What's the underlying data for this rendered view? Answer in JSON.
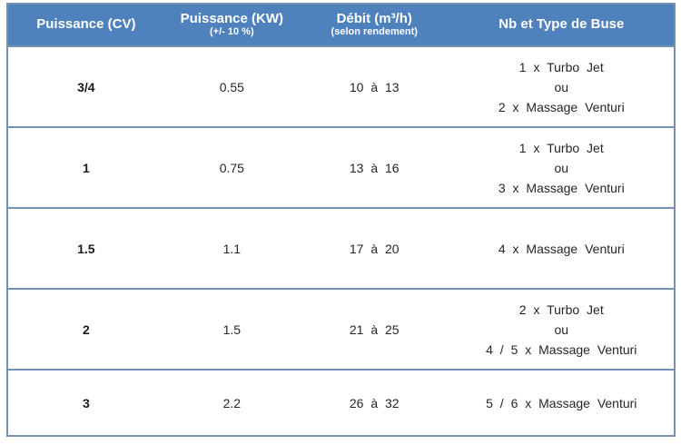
{
  "colors": {
    "header_bg": "#4f81bd",
    "header_text": "#ffffff",
    "border": "#7293b5",
    "body_text": "#262626"
  },
  "table": {
    "header": [
      {
        "title": "Puissance (CV)",
        "subtitle": ""
      },
      {
        "title": "Puissance (KW)",
        "subtitle": "(+/- 10 %)"
      },
      {
        "title": "Débit (m³/h)",
        "subtitle": "(selon rendement)"
      },
      {
        "title": "Nb et Type de Buse",
        "subtitle": ""
      }
    ],
    "rows": [
      {
        "puissance_cv": "3/4",
        "puissance_kw": "0.55",
        "debit": "10 à 13",
        "buses": [
          "1 x Turbo Jet",
          "ou",
          "2 x Massage Venturi"
        ]
      },
      {
        "puissance_cv": "1",
        "puissance_kw": "0.75",
        "debit": "13 à 16",
        "buses": [
          "1 x Turbo Jet",
          "ou",
          "3 x Massage Venturi"
        ]
      },
      {
        "puissance_cv": "1.5",
        "puissance_kw": "1.1",
        "debit": "17 à 20",
        "buses": [
          "4 x Massage Venturi"
        ]
      },
      {
        "puissance_cv": "2",
        "puissance_kw": "1.5",
        "debit": "21 à 25",
        "buses": [
          "2 x Turbo Jet",
          "ou",
          "4 / 5 x Massage Venturi"
        ]
      },
      {
        "puissance_cv": "3",
        "puissance_kw": "2.2",
        "debit": "26 à 32",
        "buses": [
          "5 / 6 x Massage Venturi"
        ]
      }
    ]
  }
}
